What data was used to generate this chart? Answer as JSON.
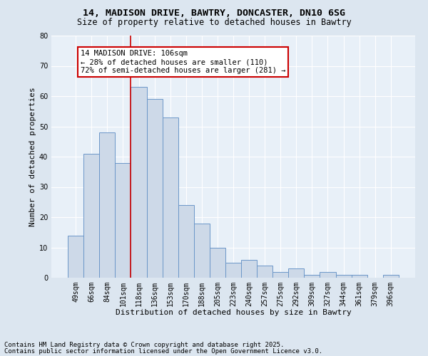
{
  "title_line1": "14, MADISON DRIVE, BAWTRY, DONCASTER, DN10 6SG",
  "title_line2": "Size of property relative to detached houses in Bawtry",
  "xlabel": "Distribution of detached houses by size in Bawtry",
  "ylabel": "Number of detached properties",
  "categories": [
    "49sqm",
    "66sqm",
    "84sqm",
    "101sqm",
    "118sqm",
    "136sqm",
    "153sqm",
    "170sqm",
    "188sqm",
    "205sqm",
    "223sqm",
    "240sqm",
    "257sqm",
    "275sqm",
    "292sqm",
    "309sqm",
    "327sqm",
    "344sqm",
    "361sqm",
    "379sqm",
    "396sqm"
  ],
  "values": [
    14,
    41,
    48,
    38,
    63,
    59,
    53,
    24,
    18,
    10,
    5,
    6,
    4,
    2,
    3,
    1,
    2,
    1,
    1,
    0,
    1
  ],
  "bar_color": "#cdd9e8",
  "bar_edge_color": "#6b96c8",
  "red_line_x": 3.5,
  "annotation_text": "14 MADISON DRIVE: 106sqm\n← 28% of detached houses are smaller (110)\n72% of semi-detached houses are larger (281) →",
  "annotation_box_color": "#ffffff",
  "annotation_box_edge": "#cc0000",
  "ylim": [
    0,
    80
  ],
  "yticks": [
    0,
    10,
    20,
    30,
    40,
    50,
    60,
    70,
    80
  ],
  "footer_line1": "Contains HM Land Registry data © Crown copyright and database right 2025.",
  "footer_line2": "Contains public sector information licensed under the Open Government Licence v3.0.",
  "bg_color": "#dce6f0",
  "plot_bg_color": "#e8f0f8",
  "grid_color": "#ffffff",
  "title_fontsize": 9.5,
  "subtitle_fontsize": 8.5,
  "axis_label_fontsize": 8,
  "tick_fontsize": 7,
  "annotation_fontsize": 7.5,
  "footer_fontsize": 6.5
}
